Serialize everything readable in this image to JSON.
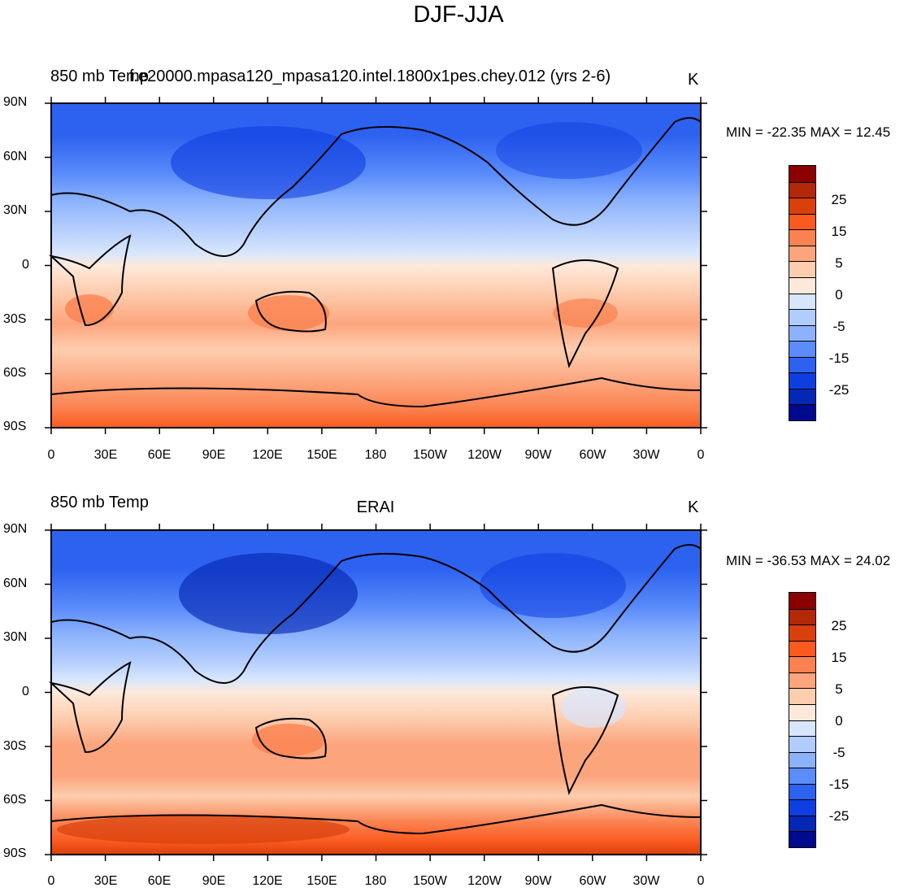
{
  "title": "DJF-JJA",
  "panels": [
    {
      "left_title": "850 mb Temp",
      "center_title": "f.e20000.mpasa120_mpasa120.intel.1800x1pes.chey.012 (yrs 2-6)",
      "units": "K",
      "min_max": "MIN = -22.35 MAX =  12.45"
    },
    {
      "left_title": "850 mb Temp",
      "center_title": "ERAI",
      "units": "K",
      "min_max": "MIN = -36.53 MAX =  24.02"
    }
  ],
  "lat_labels": [
    "90N",
    "60N",
    "30N",
    "0",
    "30S",
    "60S",
    "90S"
  ],
  "lon_labels": [
    "0",
    "30E",
    "60E",
    "90E",
    "120E",
    "150E",
    "180",
    "150W",
    "120W",
    "90W",
    "60W",
    "30W",
    "0"
  ],
  "colorbar": {
    "labels": [
      "25",
      "15",
      "5",
      "0",
      "-5",
      "-15",
      "-25"
    ],
    "colors": [
      "#8b0000",
      "#b22808",
      "#d9400c",
      "#fa5a1e",
      "#fa8250",
      "#fca57d",
      "#fdcdaf",
      "#fde9db",
      "#d7e6fd",
      "#b1ccfd",
      "#8cb2fd",
      "#5a8cfa",
      "#2d62f0",
      "#0f3ee0",
      "#0528b4",
      "#000a8c"
    ]
  }
}
